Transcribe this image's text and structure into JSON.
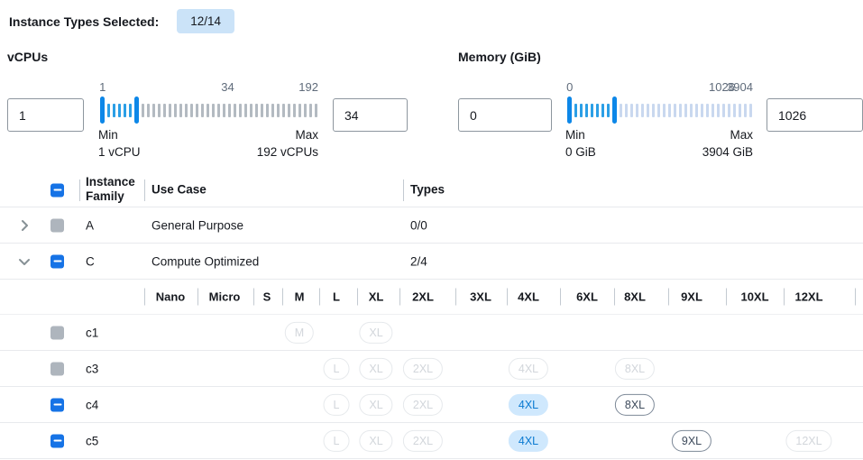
{
  "header": {
    "label": "Instance Types Selected:",
    "badge": "12/14"
  },
  "colors": {
    "accent": "#1673e6",
    "slider_handle": "#0d87e8",
    "slider_tick_active": "#2b9fe6",
    "selected_pill_bg": "#cfe8fd",
    "selected_pill_text": "#0b7ad1",
    "badge_bg": "#cbe3f8"
  },
  "sliders": [
    {
      "label": "vCPUs",
      "left_value": "1",
      "right_value": "34",
      "scale": [
        "1",
        "34",
        "192"
      ],
      "min_label": "Min",
      "min_value": "1 vCPU",
      "max_label": "Max",
      "max_value": "192 vCPUs",
      "active_ticks": 5,
      "inactive_ticks": 33,
      "inactive_tick_color": "#b3bac1"
    },
    {
      "label": "Memory (GiB)",
      "left_value": "0",
      "right_value": "1026",
      "scale": [
        "0",
        "1026",
        "3904"
      ],
      "min_label": "Min",
      "min_value": "0 GiB",
      "max_label": "Max",
      "max_value": "3904 GiB",
      "active_ticks": 7,
      "inactive_ticks": 25,
      "inactive_tick_color": "#c9d8ef"
    }
  ],
  "table": {
    "columns": {
      "family": "Instance Family",
      "use_case": "Use Case",
      "types": "Types"
    },
    "header_checkbox": "indeterminate",
    "size_columns": [
      "Nano",
      "Micro",
      "S",
      "M",
      "L",
      "XL",
      "2XL",
      "3XL",
      "4XL",
      "6XL",
      "8XL",
      "9XL",
      "10XL",
      "12XL"
    ],
    "families": [
      {
        "family": "A",
        "use_case": "General Purpose",
        "types": "0/0",
        "expanded": false,
        "checkbox": "disabled"
      },
      {
        "family": "C",
        "use_case": "Compute Optimized",
        "types": "2/4",
        "expanded": true,
        "checkbox": "indeterminate"
      }
    ],
    "instances": [
      {
        "name": "c1",
        "checkbox": "disabled",
        "pills": [
          {
            "size": "M",
            "state": "disabled"
          },
          {
            "size": "XL",
            "state": "disabled"
          }
        ]
      },
      {
        "name": "c3",
        "checkbox": "disabled",
        "pills": [
          {
            "size": "L",
            "state": "disabled"
          },
          {
            "size": "XL",
            "state": "disabled"
          },
          {
            "size": "2XL",
            "state": "disabled"
          },
          {
            "size": "4XL",
            "state": "disabled"
          },
          {
            "size": "8XL",
            "state": "disabled"
          }
        ]
      },
      {
        "name": "c4",
        "checkbox": "indeterminate",
        "pills": [
          {
            "size": "L",
            "state": "disabled"
          },
          {
            "size": "XL",
            "state": "disabled"
          },
          {
            "size": "2XL",
            "state": "disabled"
          },
          {
            "size": "4XL",
            "state": "selected"
          },
          {
            "size": "8XL",
            "state": "enabled"
          }
        ]
      },
      {
        "name": "c5",
        "checkbox": "indeterminate",
        "pills": [
          {
            "size": "L",
            "state": "disabled"
          },
          {
            "size": "XL",
            "state": "disabled"
          },
          {
            "size": "2XL",
            "state": "disabled"
          },
          {
            "size": "4XL",
            "state": "selected"
          },
          {
            "size": "9XL",
            "state": "enabled"
          },
          {
            "size": "12XL",
            "state": "disabled"
          }
        ]
      }
    ]
  }
}
